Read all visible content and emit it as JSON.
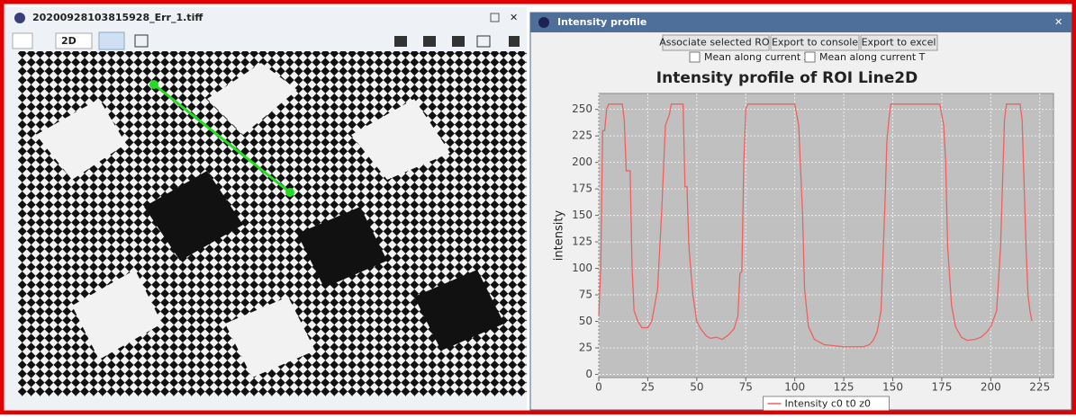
{
  "left_window": {
    "title": "20200928103815928_Err_1.tiff",
    "view_mode": "2D"
  },
  "right_window": {
    "title": "Intensity profile",
    "buttons": [
      "Associate selected ROI",
      "Export to console",
      "Export to excel"
    ],
    "checkboxes": [
      "Mean along current Z",
      "Mean along current T"
    ]
  },
  "chart_data": {
    "type": "line",
    "title": "Intensity profile of ROI Line2D",
    "y_label": "intensity",
    "x": [
      0,
      1,
      2,
      3,
      4,
      5,
      12,
      13,
      14,
      16,
      17,
      18,
      20,
      22,
      25,
      27,
      30,
      32,
      34,
      36,
      37,
      43,
      44,
      45,
      46,
      48,
      50,
      52,
      55,
      57,
      60,
      63,
      66,
      69,
      71,
      72,
      73,
      74,
      75,
      76,
      100,
      102,
      104,
      105,
      107,
      110,
      115,
      120,
      125,
      130,
      135,
      138,
      140,
      142,
      144,
      146,
      147,
      148,
      149,
      174,
      176,
      177,
      178,
      180,
      182,
      185,
      188,
      192,
      195,
      198,
      200,
      203,
      205,
      207,
      208,
      215,
      216,
      217,
      218,
      219,
      220,
      221
    ],
    "series": [
      {
        "name": "Intensity c0 t0 z0",
        "color": "#f06060",
        "values": [
          56,
          100,
          230,
          230,
          250,
          255,
          255,
          240,
          192,
          192,
          100,
          60,
          50,
          44,
          44,
          50,
          80,
          150,
          235,
          245,
          255,
          255,
          177,
          177,
          120,
          75,
          50,
          43,
          36,
          34,
          35,
          33,
          37,
          43,
          55,
          95,
          97,
          200,
          250,
          255,
          255,
          235,
          150,
          80,
          45,
          33,
          28,
          27,
          26,
          26,
          26,
          28,
          32,
          40,
          60,
          160,
          220,
          240,
          255,
          255,
          235,
          200,
          120,
          65,
          45,
          35,
          32,
          33,
          35,
          40,
          45,
          60,
          120,
          240,
          255,
          255,
          240,
          180,
          120,
          75,
          60,
          50
        ]
      }
    ],
    "xlim": [
      0,
      232
    ],
    "ylim": [
      -3,
      265
    ],
    "xticks": [
      0,
      25,
      50,
      75,
      100,
      125,
      150,
      175,
      200,
      225
    ],
    "yticks": [
      0,
      25,
      50,
      75,
      100,
      125,
      150,
      175,
      200,
      225,
      250
    ],
    "grid": true,
    "background": "#c0c0c0",
    "legend": "bottom"
  }
}
